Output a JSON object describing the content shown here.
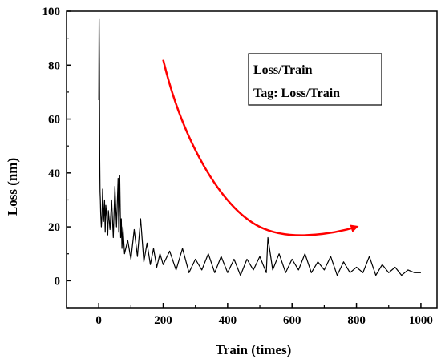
{
  "chart_data": {
    "type": "line",
    "title": "",
    "xlabel": "Train (times)",
    "ylabel": "Loss (nm)",
    "xlim": [
      -100,
      1050
    ],
    "ylim": [
      -10,
      100
    ],
    "x_ticks": [
      0,
      200,
      400,
      600,
      800,
      1000
    ],
    "y_ticks": [
      0,
      20,
      40,
      60,
      80,
      100
    ],
    "grid": false,
    "legend": {
      "placement": "top-right",
      "lines": [
        "Loss/Train",
        "Tag: Loss/Train"
      ]
    },
    "annotation": {
      "type": "arrow",
      "description": "curved downward arrow indicating decreasing loss",
      "color": "#ff0000",
      "path": [
        [
          200,
          82
        ],
        [
          260,
          52
        ],
        [
          380,
          27
        ],
        [
          500,
          20
        ],
        [
          800,
          20
        ]
      ]
    },
    "series": [
      {
        "color": "#000000",
        "x": [
          0,
          1,
          2,
          3,
          4,
          5,
          6,
          8,
          10,
          12,
          15,
          18,
          20,
          22,
          25,
          28,
          30,
          35,
          40,
          45,
          50,
          55,
          60,
          62,
          65,
          68,
          70,
          72,
          75,
          80,
          90,
          100,
          110,
          120,
          130,
          140,
          150,
          160,
          170,
          180,
          190,
          200,
          220,
          240,
          260,
          280,
          300,
          320,
          340,
          360,
          380,
          400,
          420,
          440,
          460,
          480,
          500,
          520,
          525,
          540,
          560,
          580,
          600,
          620,
          640,
          660,
          680,
          700,
          720,
          740,
          760,
          780,
          800,
          820,
          840,
          860,
          880,
          900,
          920,
          940,
          960,
          980,
          1000
        ],
        "values": [
          67,
          97,
          80,
          45,
          33,
          30,
          25,
          20,
          24,
          34,
          22,
          30,
          18,
          28,
          24,
          17,
          26,
          19,
          30,
          16,
          35,
          20,
          38,
          18,
          39,
          16,
          23,
          12,
          20,
          10,
          15,
          8,
          19,
          9,
          23,
          7,
          14,
          6,
          12,
          5,
          10,
          6,
          11,
          4,
          12,
          3,
          8,
          4,
          10,
          3,
          9,
          3,
          8,
          2,
          8,
          4,
          9,
          3,
          16,
          4,
          10,
          3,
          8,
          4,
          10,
          3,
          7,
          4,
          9,
          2,
          7,
          3,
          5,
          3,
          9,
          2,
          6,
          3,
          5,
          2,
          4,
          3,
          3
        ]
      }
    ]
  }
}
